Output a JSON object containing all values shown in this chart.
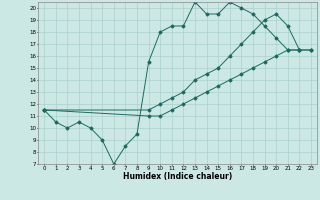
{
  "title": "",
  "xlabel": "Humidex (Indice chaleur)",
  "ylabel": "",
  "background_color": "#cce8e4",
  "grid_color": "#aad0cc",
  "line_color": "#1a6b5e",
  "xlim": [
    -0.5,
    23.5
  ],
  "ylim": [
    7,
    20.5
  ],
  "xticks": [
    0,
    1,
    2,
    3,
    4,
    5,
    6,
    7,
    8,
    9,
    10,
    11,
    12,
    13,
    14,
    15,
    16,
    17,
    18,
    19,
    20,
    21,
    22,
    23
  ],
  "yticks": [
    7,
    8,
    9,
    10,
    11,
    12,
    13,
    14,
    15,
    16,
    17,
    18,
    19,
    20
  ],
  "line1_x": [
    0,
    1,
    2,
    3,
    4,
    5,
    6,
    7,
    8,
    9,
    10,
    11,
    12,
    13,
    14,
    15,
    16,
    17,
    18,
    19,
    20,
    21,
    22
  ],
  "line1_y": [
    11.5,
    10.5,
    10.0,
    10.5,
    10.0,
    9.0,
    7.0,
    8.5,
    9.5,
    15.5,
    18.0,
    18.5,
    18.5,
    20.5,
    19.5,
    19.5,
    20.5,
    20.0,
    19.5,
    18.5,
    17.5,
    16.5,
    16.5
  ],
  "line2_x": [
    0,
    9,
    10,
    11,
    12,
    13,
    14,
    15,
    16,
    17,
    18,
    19,
    20,
    21,
    22,
    23
  ],
  "line2_y": [
    11.5,
    11.0,
    11.0,
    11.5,
    12.0,
    12.5,
    13.0,
    13.5,
    14.0,
    14.5,
    15.0,
    15.5,
    16.0,
    16.5,
    16.5,
    16.5
  ],
  "line3_x": [
    0,
    9,
    10,
    11,
    12,
    13,
    14,
    15,
    16,
    17,
    18,
    19,
    20,
    21,
    22,
    23
  ],
  "line3_y": [
    11.5,
    11.5,
    12.0,
    12.5,
    13.0,
    14.0,
    14.5,
    15.0,
    16.0,
    17.0,
    18.0,
    19.0,
    19.5,
    18.5,
    16.5,
    16.5
  ]
}
